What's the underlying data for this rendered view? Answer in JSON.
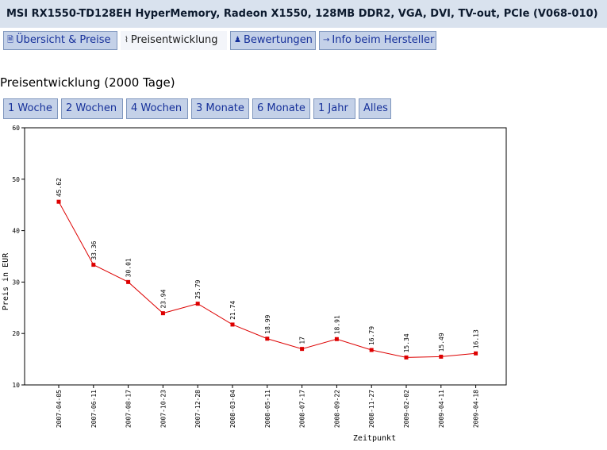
{
  "product_title": "MSI RX1550-TD128EH HyperMemory, Radeon X1550, 128MB DDR2, VGA, DVI, TV-out, PCIe (V068-010)",
  "tabs": [
    {
      "label": "Übersicht & Preise",
      "icon": "document-icon",
      "glyph": "🗎",
      "active": false
    },
    {
      "label": "Preisentwicklung",
      "icon": "chart-icon",
      "glyph": "⌇",
      "active": true
    },
    {
      "label": "Bewertungen",
      "icon": "person-icon",
      "glyph": "♟",
      "active": false
    },
    {
      "label": "Info beim Hersteller",
      "icon": "arrow-icon",
      "glyph": "→",
      "active": false
    }
  ],
  "section_title": "Preisentwicklung (2000 Tage)",
  "ranges": [
    "1 Woche",
    "2 Wochen",
    "4 Wochen",
    "3 Monate",
    "6 Monate",
    "1 Jahr",
    "Alles"
  ],
  "colors": {
    "title_bar": "#d9e2ee",
    "button_bg": "#c4d1e8",
    "button_border": "#7f96bd",
    "link": "#16309a",
    "series": "#dd0000"
  },
  "chart_data": {
    "type": "line",
    "xlabel": "Zeitpunkt",
    "ylabel": "Preis in EUR",
    "ylim": [
      10,
      60
    ],
    "yticks": [
      10,
      20,
      30,
      40,
      50,
      60
    ],
    "grid": false,
    "x": [
      "2007-04-05",
      "2007-06-11",
      "2007-08-17",
      "2007-10-23",
      "2007-12-28",
      "2008-03-04",
      "2008-05-11",
      "2008-07-17",
      "2008-09-22",
      "2008-11-27",
      "2009-02-02",
      "2009-04-11",
      "2009-04-18"
    ],
    "values": [
      45.62,
      33.36,
      30.01,
      23.94,
      25.79,
      21.74,
      18.99,
      17,
      18.91,
      16.79,
      15.34,
      15.49,
      16.13
    ],
    "point_labels": [
      "45.62",
      "33.36",
      "30.01",
      "23.94",
      "25.79",
      "21.74",
      "18.99",
      "17",
      "18.91",
      "16.79",
      "15.34",
      "15.49",
      "16.13"
    ]
  }
}
